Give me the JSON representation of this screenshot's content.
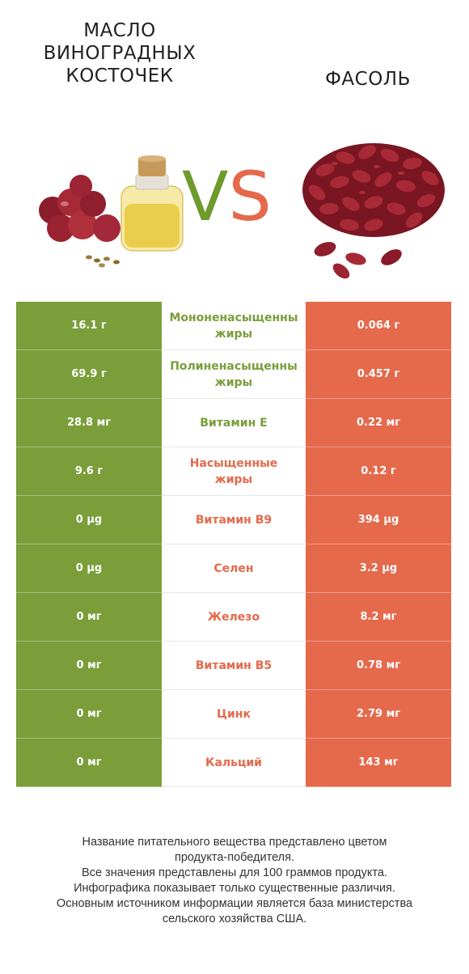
{
  "header": {
    "left_title": "Масло виноградных косточек",
    "right_title": "Фасоль",
    "vs_v": "V",
    "vs_s": "S",
    "colors": {
      "left": "#7a9e3a",
      "right": "#e5694b"
    }
  },
  "rows": [
    {
      "left": "16.1 г",
      "nutrient": "Мононенасыщенны\nжиры",
      "right": "0.064 г",
      "winner": "left"
    },
    {
      "left": "69.9 г",
      "nutrient": "Полиненасыщенны\nжиры",
      "right": "0.457 г",
      "winner": "left"
    },
    {
      "left": "28.8 мг",
      "nutrient": "Витамин E",
      "right": "0.22 мг",
      "winner": "left"
    },
    {
      "left": "9.6 г",
      "nutrient": "Насыщенные\nжиры",
      "right": "0.12 г",
      "winner": "right"
    },
    {
      "left": "0 µg",
      "nutrient": "Витамин B9",
      "right": "394 µg",
      "winner": "right"
    },
    {
      "left": "0 µg",
      "nutrient": "Селен",
      "right": "3.2 µg",
      "winner": "right"
    },
    {
      "left": "0 мг",
      "nutrient": "Железо",
      "right": "8.2 мг",
      "winner": "right"
    },
    {
      "left": "0 мг",
      "nutrient": "Витамин B5",
      "right": "0.78 мг",
      "winner": "right"
    },
    {
      "left": "0 мг",
      "nutrient": "Цинк",
      "right": "2.79 мг",
      "winner": "right"
    },
    {
      "left": "0 мг",
      "nutrient": "Кальций",
      "right": "143 мг",
      "winner": "right"
    }
  ],
  "footnote": [
    "Название питательного вещества представлено цветом",
    "продукта-победителя.",
    "Все значения представлены для 100 граммов продукта.",
    "Инфографика показывает только существенные различия.",
    "Основным источником информации является база министерства",
    "сельского хозяйства США."
  ]
}
